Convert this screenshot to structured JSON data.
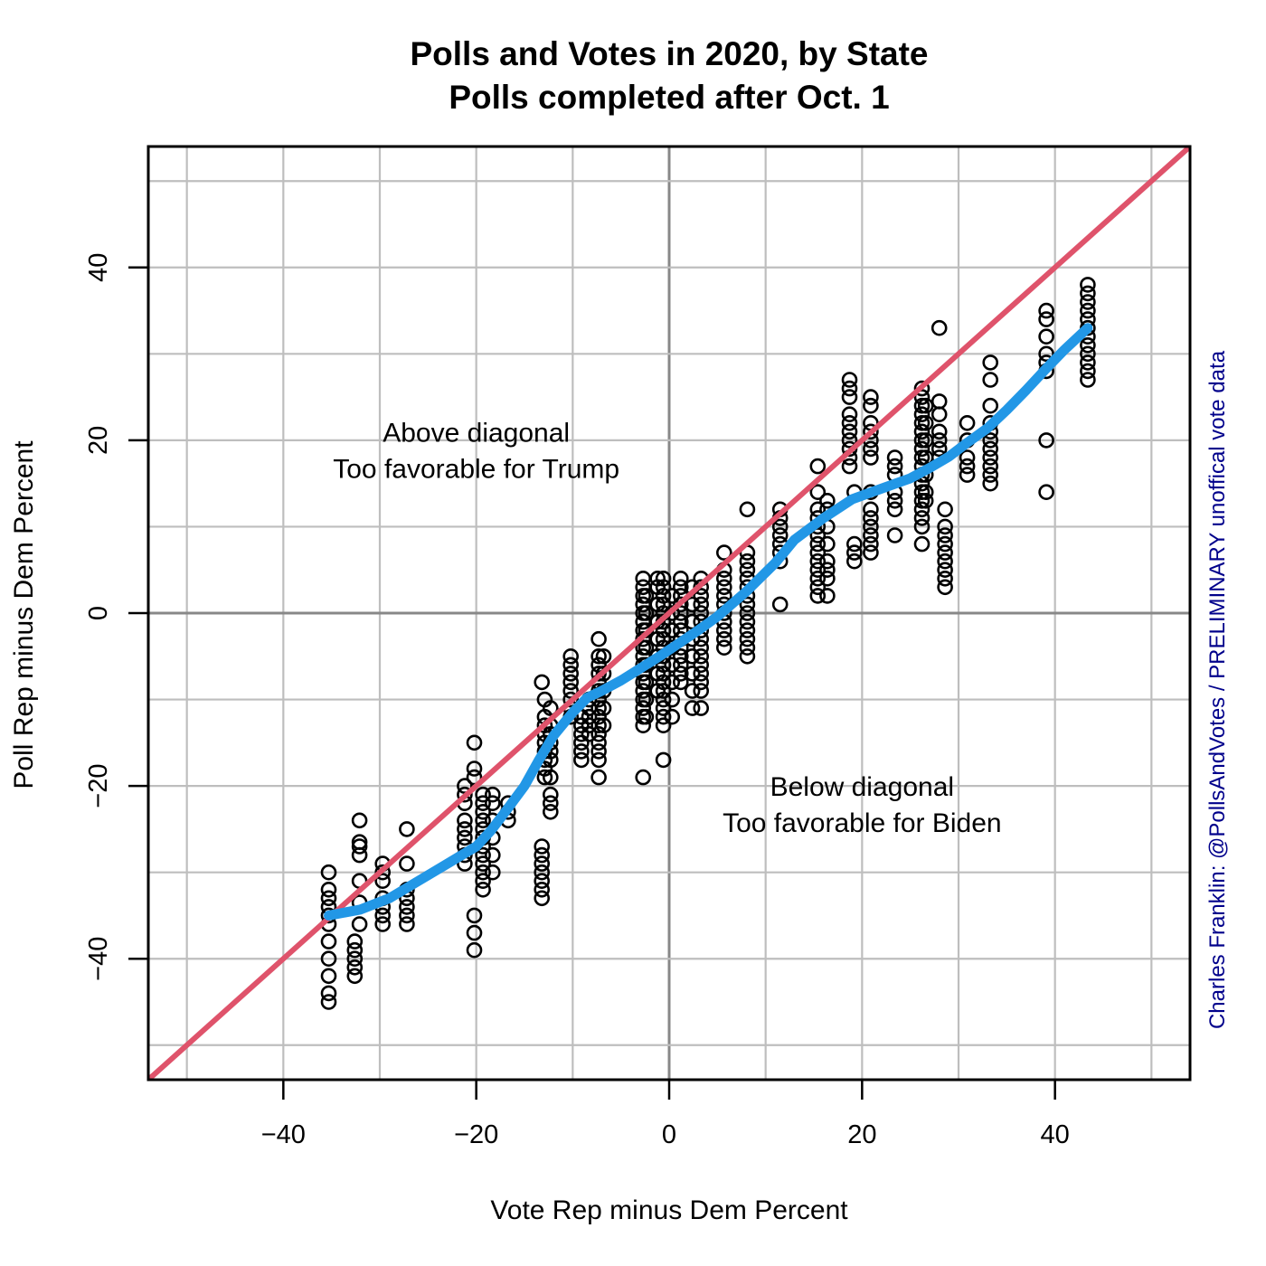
{
  "chart_data": {
    "type": "scatter",
    "title": "Polls and Votes in 2020, by State",
    "subtitle": "Polls completed after Oct. 1",
    "xlabel": "Vote Rep minus Dem Percent",
    "ylabel": "Poll Rep minus Dem Percent",
    "xlim": [
      -54,
      54
    ],
    "ylim": [
      -54,
      54
    ],
    "x_ticks": [
      -40,
      -20,
      0,
      20,
      40
    ],
    "y_ticks": [
      -40,
      -20,
      0,
      20,
      40
    ],
    "x_tick_labels": [
      "−40",
      "−20",
      "0",
      "20",
      "40"
    ],
    "y_tick_labels": [
      "−40",
      "−20",
      "0",
      "20",
      "40"
    ],
    "grid": true,
    "grid_minor_step": 10,
    "grid_major_step": 20,
    "annotations": {
      "above_line1": "Above diagonal",
      "above_line2": "Too favorable for Trump",
      "below_line1": "Below diagonal",
      "below_line2": "Too favorable for Biden",
      "above_pos": [
        -20,
        19
      ],
      "below_pos": [
        20,
        -22
      ]
    },
    "credit": "Charles Franklin: @PollsAndVotes / PRELIMINARY unoffical vote data",
    "colors": {
      "diagonal": "#DF536B",
      "smooth": "#2297E6",
      "points": "#000000",
      "grid": "#BEBEBE",
      "zero_lines": "#888888",
      "credit": "#00008B"
    },
    "series": [
      {
        "kind": "points",
        "state_groups": [
          {
            "x": -35.3,
            "y": [
              -30,
              -32,
              -33,
              -34,
              -35,
              -36,
              -38,
              -40,
              -42,
              -44,
              -45
            ]
          },
          {
            "x": -32.6,
            "y": [
              -38,
              -39,
              -40,
              -41,
              -42
            ]
          },
          {
            "x": -32.1,
            "y": [
              -24,
              -26.5,
              -27,
              -28,
              -31,
              -33.5,
              -36
            ]
          },
          {
            "x": -29.7,
            "y": [
              -29,
              -30,
              -31,
              -33,
              -34,
              -35,
              -36
            ]
          },
          {
            "x": -27.2,
            "y": [
              -25,
              -29,
              -32,
              -33,
              -34,
              -35,
              -36
            ]
          },
          {
            "x": -21.2,
            "y": [
              -20,
              -21,
              -22,
              -24,
              -25,
              -26,
              -27,
              -28,
              -29
            ]
          },
          {
            "x": -20.2,
            "y": [
              -15,
              -18,
              -19,
              -35,
              -37,
              -39
            ]
          },
          {
            "x": -19.3,
            "y": [
              -21,
              -22,
              -23,
              -24,
              -25,
              -26,
              -27,
              -28,
              -29,
              -30,
              -31,
              -32
            ]
          },
          {
            "x": -18.3,
            "y": [
              -21,
              -22,
              -24,
              -26,
              -28,
              -30
            ]
          },
          {
            "x": -16.7,
            "y": [
              -22,
              -23,
              -24
            ]
          },
          {
            "x": -13.2,
            "y": [
              -8,
              -27,
              -28,
              -29,
              -30,
              -31,
              -32,
              -33
            ]
          },
          {
            "x": -12.9,
            "y": [
              -10,
              -12,
              -13,
              -14,
              -15,
              -16,
              -17,
              -18,
              -19
            ]
          },
          {
            "x": -12.3,
            "y": [
              -11,
              -13,
              -14,
              -15,
              -16,
              -17,
              -19,
              -21,
              -22,
              -23
            ]
          },
          {
            "x": -10.2,
            "y": [
              -5,
              -6,
              -7,
              -8,
              -9,
              -10,
              -11,
              -12
            ]
          },
          {
            "x": -9.1,
            "y": [
              -12,
              -13,
              -14,
              -15,
              -16,
              -17
            ]
          },
          {
            "x": -8.3,
            "y": [
              -10,
              -11,
              -12,
              -13,
              -14
            ]
          },
          {
            "x": -7.3,
            "y": [
              -3,
              -5,
              -6,
              -7,
              -8,
              -9,
              -10,
              -11,
              -12,
              -13,
              -14,
              -15,
              -16,
              -17,
              -19
            ]
          },
          {
            "x": -6.8,
            "y": [
              -5,
              -7,
              -9,
              -11,
              -13
            ]
          },
          {
            "x": -2.7,
            "y": [
              -19,
              -13,
              -12,
              -11,
              -10,
              -9,
              -8,
              -7,
              -6,
              -5,
              -4,
              -3,
              -2,
              -1,
              0,
              1,
              2,
              3,
              4
            ]
          },
          {
            "x": -2.4,
            "y": [
              -12,
              -10,
              -8,
              -6,
              -4,
              -2,
              0,
              2
            ]
          },
          {
            "x": -1.2,
            "y": [
              -9,
              -7,
              -5,
              -3,
              -1,
              1,
              3,
              4
            ]
          },
          {
            "x": -0.6,
            "y": [
              -17,
              -13,
              -12,
              -11,
              -10,
              -9,
              -8,
              -7,
              -6,
              -5,
              -4,
              -3,
              -2,
              -1,
              0,
              1,
              2,
              3,
              4
            ]
          },
          {
            "x": 0.3,
            "y": [
              -12,
              -10,
              -8,
              -6,
              -4,
              -2,
              0,
              2
            ]
          },
          {
            "x": 1.2,
            "y": [
              -8,
              -7,
              -6,
              -5,
              -4,
              -3,
              -2,
              -1,
              0,
              1,
              2,
              3,
              4
            ]
          },
          {
            "x": 2.4,
            "y": [
              -11,
              -9,
              -7,
              -5,
              -3,
              -1,
              1,
              3
            ]
          },
          {
            "x": 3.3,
            "y": [
              -11,
              -9,
              -8,
              -7,
              -6,
              -5,
              -4,
              -3,
              -2,
              -1,
              0,
              1,
              2,
              3,
              4
            ]
          },
          {
            "x": 5.7,
            "y": [
              -4,
              -3,
              -2,
              -1,
              0,
              1,
              2,
              3,
              4,
              5,
              7
            ]
          },
          {
            "x": 8.1,
            "y": [
              -5,
              -4,
              -3,
              -2,
              -1,
              0,
              1,
              2,
              3,
              4,
              5,
              6,
              7,
              12
            ]
          },
          {
            "x": 11.5,
            "y": [
              1,
              6,
              7,
              8,
              9,
              10,
              11,
              12
            ]
          },
          {
            "x": 15.4,
            "y": [
              2,
              3,
              4,
              5,
              6,
              7,
              8,
              9,
              10,
              11,
              12,
              14,
              17
            ]
          },
          {
            "x": 16.4,
            "y": [
              2,
              4,
              5,
              6,
              8,
              10,
              12,
              13
            ]
          },
          {
            "x": 18.7,
            "y": [
              17,
              18,
              19,
              20,
              21,
              22,
              23,
              25,
              26,
              27
            ]
          },
          {
            "x": 19.2,
            "y": [
              6,
              7,
              8,
              14
            ]
          },
          {
            "x": 20.9,
            "y": [
              7,
              8,
              9,
              10,
              11,
              12,
              14,
              18,
              19,
              20,
              21,
              22,
              24,
              25
            ]
          },
          {
            "x": 23.4,
            "y": [
              9,
              12,
              13,
              14,
              16,
              17,
              18
            ]
          },
          {
            "x": 26.2,
            "y": [
              8,
              10,
              11,
              12,
              13,
              14,
              15,
              16,
              17,
              18,
              19,
              20,
              21,
              22,
              23,
              24,
              25,
              26
            ]
          },
          {
            "x": 26.6,
            "y": [
              13,
              14,
              16,
              18,
              20,
              22,
              24
            ]
          },
          {
            "x": 28.0,
            "y": [
              18,
              19,
              20,
              21,
              23,
              24.5,
              33
            ]
          },
          {
            "x": 28.6,
            "y": [
              3,
              4,
              5,
              6,
              7,
              8,
              9,
              10,
              12
            ]
          },
          {
            "x": 30.9,
            "y": [
              16,
              17,
              18,
              20,
              22
            ]
          },
          {
            "x": 33.3,
            "y": [
              15,
              16,
              17,
              18,
              19,
              20,
              21,
              22,
              24,
              27,
              29
            ]
          },
          {
            "x": 39.1,
            "y": [
              14,
              20,
              28,
              29,
              30,
              32,
              34,
              35
            ]
          },
          {
            "x": 43.4,
            "y": [
              27,
              28,
              29,
              30,
              31,
              32,
              33,
              34,
              35,
              36,
              37,
              38
            ]
          }
        ]
      },
      {
        "kind": "line",
        "role": "diagonal",
        "x": [
          -54,
          54
        ],
        "y": [
          -54,
          54
        ]
      },
      {
        "kind": "line",
        "role": "smooth",
        "x": [
          -35.3,
          -32,
          -29,
          -26,
          -23,
          -20,
          -18.5,
          -17,
          -15,
          -13.5,
          -12,
          -10,
          -8.5,
          -7,
          -5,
          -3,
          -1,
          1,
          3,
          5,
          8,
          11,
          13,
          16,
          19,
          21,
          23,
          25,
          27,
          29,
          31,
          33,
          35,
          37,
          39,
          41,
          43.4
        ],
        "y": [
          -35,
          -34.3,
          -33,
          -31,
          -29,
          -27,
          -25.2,
          -23,
          -20,
          -17,
          -14.2,
          -11.5,
          -9.8,
          -9,
          -7.8,
          -6.4,
          -5,
          -3.5,
          -2,
          -0.4,
          2.5,
          5.8,
          8.5,
          11,
          13.2,
          14,
          14.8,
          15.6,
          16.8,
          18.1,
          19.8,
          21.4,
          23.5,
          25.8,
          28.2,
          30.5,
          33
        ]
      }
    ]
  }
}
